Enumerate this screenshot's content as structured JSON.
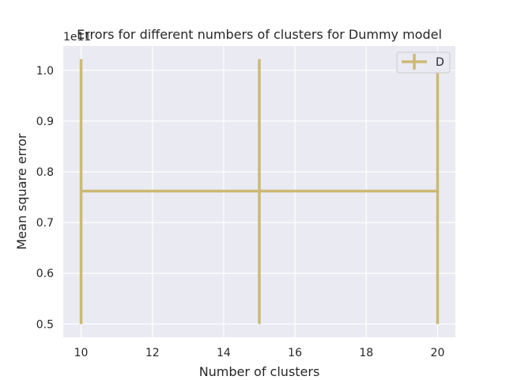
{
  "chart_data": {
    "type": "line",
    "title": "Errors for different numbers of clusters for Dummy model",
    "xlabel": "Number of clusters",
    "ylabel": "Mean square error",
    "y_offset_label": "1e11",
    "xlim": [
      9.5,
      20.5
    ],
    "ylim": [
      0.474,
      1.048
    ],
    "xticks": [
      10,
      12,
      14,
      16,
      18,
      20
    ],
    "yticks": [
      0.5,
      0.6,
      0.7,
      0.8,
      0.9,
      1.0
    ],
    "xtick_labels": [
      "10",
      "12",
      "14",
      "16",
      "18",
      "20"
    ],
    "ytick_labels": [
      "0.5",
      "0.6",
      "0.7",
      "0.8",
      "0.9",
      "1.0"
    ],
    "grid": true,
    "legend_position": "top-right",
    "series": [
      {
        "name": "D",
        "color": "#ccb974",
        "x": [
          10,
          15,
          20
        ],
        "y": [
          0.762,
          0.762,
          0.762
        ],
        "error_low": [
          0.5,
          0.5,
          0.5
        ],
        "error_high": [
          1.022,
          1.022,
          1.022
        ]
      }
    ]
  }
}
